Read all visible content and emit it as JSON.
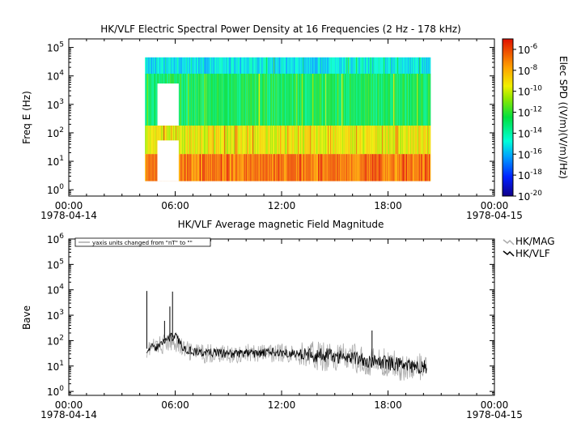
{
  "chart_data": [
    {
      "type": "heatmap",
      "title": "HK/VLF  Electric Spectral Power Density at 16 Frequencies (2 Hz - 178 kHz)",
      "xlabel": "",
      "ylabel": "Freq E (Hz)",
      "y_scale": "log",
      "ylim": [
        0.6,
        200000
      ],
      "x_ticks": [
        {
          "hour": 0,
          "label": "00:00",
          "date": "1978-04-14"
        },
        {
          "hour": 6,
          "label": "06:00"
        },
        {
          "hour": 12,
          "label": "12:00"
        },
        {
          "hour": 18,
          "label": "18:00"
        },
        {
          "hour": 24,
          "label": "00:00",
          "date": "1978-04-15"
        }
      ],
      "y_ticks": [
        {
          "exp": 0,
          "base": "10",
          "sup": "0"
        },
        {
          "exp": 1,
          "base": "10",
          "sup": "1"
        },
        {
          "exp": 2,
          "base": "10",
          "sup": "2"
        },
        {
          "exp": 3,
          "base": "10",
          "sup": "3"
        },
        {
          "exp": 4,
          "base": "10",
          "sup": "4"
        },
        {
          "exp": 5,
          "base": "10",
          "sup": "5"
        }
      ],
      "data_time_range_hours": [
        4.3,
        20.4
      ],
      "gap_hours": [
        5.0,
        6.2
      ],
      "frequency_range_hz": [
        2,
        45000
      ],
      "colorbar": {
        "label": "Elec SPD ((V/m)(V/m)/Hz)",
        "range_exp": [
          -20,
          -5
        ],
        "ticks": [
          {
            "exp": -6,
            "base": "10",
            "sup": "-6"
          },
          {
            "exp": -8,
            "base": "10",
            "sup": "-8"
          },
          {
            "exp": -10,
            "base": "10",
            "sup": "-10"
          },
          {
            "exp": -12,
            "base": "10",
            "sup": "-12"
          },
          {
            "exp": -14,
            "base": "10",
            "sup": "-14"
          },
          {
            "exp": -16,
            "base": "10",
            "sup": "-16"
          },
          {
            "exp": -18,
            "base": "10",
            "sup": "-18"
          },
          {
            "exp": -20,
            "base": "10",
            "sup": "-20"
          }
        ]
      },
      "bands": [
        {
          "freq_low": 2,
          "freq_high": 18,
          "log_value_exp": -7.0
        },
        {
          "freq_low": 18,
          "freq_high": 180,
          "log_value_exp": -9.5
        },
        {
          "freq_low": 180,
          "freq_high": 12000,
          "log_value_exp": -12.8
        },
        {
          "freq_low": 12000,
          "freq_high": 45000,
          "log_value_exp": -15.2
        }
      ]
    },
    {
      "type": "line",
      "title": "HK/VLF  Average magnetic Field Magnitude",
      "xlabel": "",
      "ylabel": "Bave",
      "y_scale": "log",
      "ylim": [
        0.7,
        1000000
      ],
      "annotation": "yaxis units changed from \"nT\" to \"\"",
      "x_ticks": [
        {
          "hour": 0,
          "label": "00:00",
          "date": "1978-04-14"
        },
        {
          "hour": 6,
          "label": "06:00"
        },
        {
          "hour": 12,
          "label": "12:00"
        },
        {
          "hour": 18,
          "label": "18:00"
        },
        {
          "hour": 24,
          "label": "00:00",
          "date": "1978-04-15"
        }
      ],
      "y_ticks": [
        {
          "exp": 0,
          "base": "10",
          "sup": "0"
        },
        {
          "exp": 1,
          "base": "10",
          "sup": "1"
        },
        {
          "exp": 2,
          "base": "10",
          "sup": "2"
        },
        {
          "exp": 3,
          "base": "10",
          "sup": "3"
        },
        {
          "exp": 4,
          "base": "10",
          "sup": "4"
        },
        {
          "exp": 5,
          "base": "10",
          "sup": "5"
        },
        {
          "exp": 6,
          "base": "10",
          "sup": "6"
        }
      ],
      "legend_position": "right",
      "series": [
        {
          "name": "HK/MAG",
          "color": "#aaaaaa",
          "x_hours": [
            4.4,
            5.0,
            5.5,
            6.0,
            6.5,
            7.0,
            7.5,
            8.0,
            8.5,
            9.0,
            9.5,
            10.0,
            10.5,
            11.0,
            11.5,
            12.0,
            12.5,
            13.0,
            13.5,
            14.0,
            14.5,
            15.0,
            15.5,
            16.0,
            16.5,
            17.0,
            17.5,
            18.0,
            18.5,
            19.0,
            19.5,
            20.2
          ],
          "values": [
            50,
            60,
            80,
            90,
            45,
            35,
            30,
            32,
            30,
            28,
            30,
            32,
            30,
            30,
            32,
            33,
            30,
            28,
            26,
            24,
            25,
            22,
            22,
            20,
            18,
            14,
            13,
            12,
            11,
            9,
            8,
            8
          ]
        },
        {
          "name": "HK/VLF",
          "color": "#000000",
          "x_hours": [
            4.4,
            5.0,
            5.5,
            6.0,
            6.5,
            7.0,
            7.5,
            8.0,
            8.5,
            9.0,
            9.5,
            10.0,
            10.5,
            11.0,
            11.5,
            12.0,
            12.5,
            13.0,
            13.5,
            14.0,
            14.5,
            15.0,
            15.5,
            16.0,
            16.5,
            17.0,
            17.5,
            18.0,
            18.5,
            19.0,
            19.5,
            20.2
          ],
          "values": [
            48,
            55,
            120,
            150,
            50,
            38,
            33,
            34,
            32,
            30,
            31,
            33,
            31,
            32,
            34,
            35,
            32,
            30,
            27,
            25,
            27,
            24,
            23,
            22,
            20,
            15,
            14,
            13,
            12,
            10,
            9,
            9
          ]
        }
      ],
      "spikes": [
        {
          "x_hour": 4.4,
          "value": 9000,
          "series": "HK/VLF"
        },
        {
          "x_hour": 5.85,
          "value": 8500,
          "series": "HK/VLF"
        },
        {
          "x_hour": 5.7,
          "value": 2200,
          "series": "HK/VLF"
        },
        {
          "x_hour": 5.4,
          "value": 600,
          "series": "HK/VLF"
        },
        {
          "x_hour": 17.1,
          "value": 250,
          "series": "HK/VLF"
        }
      ]
    }
  ]
}
